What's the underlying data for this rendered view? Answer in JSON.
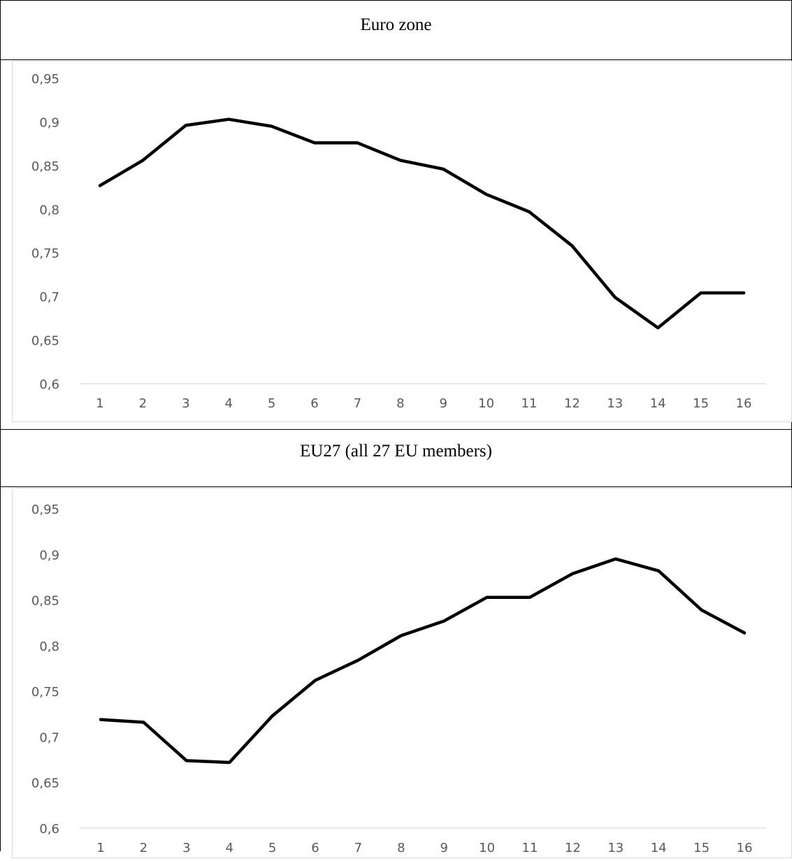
{
  "chart_data": [
    {
      "type": "line",
      "title": "Euro zone",
      "x": [
        1,
        2,
        3,
        4,
        5,
        6,
        7,
        8,
        9,
        10,
        11,
        12,
        13,
        14,
        15,
        16
      ],
      "series": [
        {
          "values": [
            0.827,
            0.856,
            0.896,
            0.903,
            0.895,
            0.876,
            0.876,
            0.856,
            0.846,
            0.817,
            0.797,
            0.758,
            0.699,
            0.664,
            0.704,
            0.704
          ]
        }
      ],
      "ylim": [
        0.6,
        0.95
      ],
      "yticks": [
        "0,6",
        "0,65",
        "0,7",
        "0,75",
        "0,8",
        "0,85",
        "0,9",
        "0,95"
      ],
      "xticks": [
        "1",
        "2",
        "3",
        "4",
        "5",
        "6",
        "7",
        "8",
        "9",
        "10",
        "11",
        "12",
        "13",
        "14",
        "15",
        "16"
      ],
      "grid": false,
      "line_color": "#000000"
    },
    {
      "type": "line",
      "title": "EU27 (all 27 EU members)",
      "x": [
        1,
        2,
        3,
        4,
        5,
        6,
        7,
        8,
        9,
        10,
        11,
        12,
        13,
        14,
        15,
        16
      ],
      "series": [
        {
          "values": [
            0.719,
            0.716,
            0.674,
            0.672,
            0.723,
            0.762,
            0.784,
            0.811,
            0.827,
            0.853,
            0.853,
            0.879,
            0.895,
            0.882,
            0.839,
            0.814
          ]
        }
      ],
      "ylim": [
        0.6,
        0.95
      ],
      "yticks": [
        "0,6",
        "0,65",
        "0,7",
        "0,75",
        "0,8",
        "0,85",
        "0,9",
        "0,95"
      ],
      "xticks": [
        "1",
        "2",
        "3",
        "4",
        "5",
        "6",
        "7",
        "8",
        "9",
        "10",
        "11",
        "12",
        "13",
        "14",
        "15",
        "16"
      ],
      "grid": false,
      "line_color": "#000000"
    }
  ]
}
